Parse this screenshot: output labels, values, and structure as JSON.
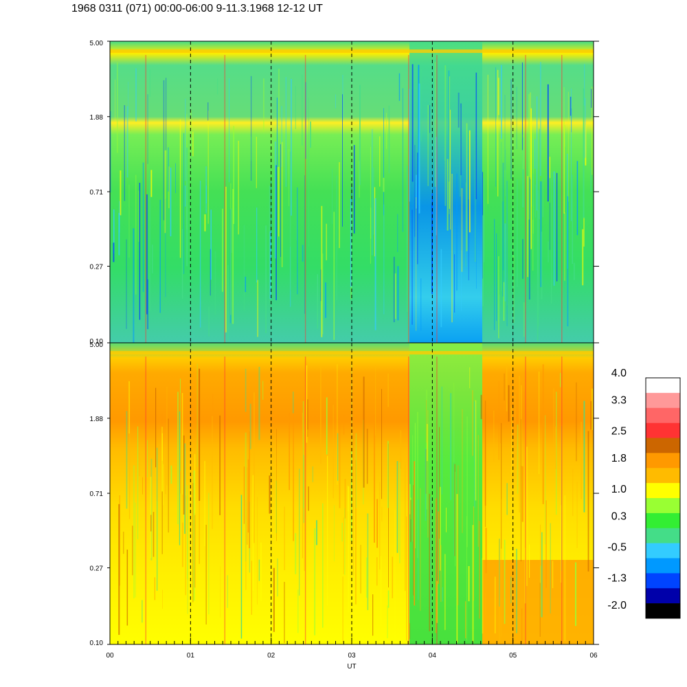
{
  "title": "1968 0311 (071) 00:00-06:00 9-11.3.1968  12-12 UT",
  "chart_data": [
    {
      "type": "heatmap",
      "panel": "top",
      "x_ticks": [
        "00",
        "01",
        "02",
        "03",
        "04",
        "05",
        "06"
      ],
      "xlim": [
        0,
        6
      ],
      "y_ticks": [
        "5.00",
        "1.88",
        "0.71",
        "0.27",
        "0.10"
      ],
      "ylim": [
        0.1,
        5.0
      ],
      "y_scale": "log",
      "grid": "dashed vertical lines at each hour"
    },
    {
      "type": "heatmap",
      "panel": "bottom",
      "x_ticks": [
        "00",
        "01",
        "02",
        "03",
        "04",
        "05",
        "06"
      ],
      "xlabel": "UT",
      "xlim": [
        0,
        6
      ],
      "y_ticks": [
        "5.00",
        "1.88",
        "0.71",
        "0.27",
        "0.10"
      ],
      "ylim": [
        0.1,
        5.0
      ],
      "y_scale": "log",
      "grid": "dashed vertical lines at each hour"
    }
  ],
  "colorbar": {
    "labels": [
      "4.0",
      "3.3",
      "2.5",
      "1.8",
      "1.0",
      "0.3",
      "-0.5",
      "-1.3",
      "-2.0"
    ],
    "range": [
      -2.0,
      4.0
    ],
    "colors_top_to_bottom": [
      "#ffffff",
      "#ff9999",
      "#ff6666",
      "#ff3333",
      "#cc6600",
      "#ff9900",
      "#ffbb00",
      "#ffff00",
      "#99ff33",
      "#33ee33",
      "#44dd88",
      "#33ccff",
      "#0099ff",
      "#0044ff",
      "#0000aa",
      "#000000"
    ]
  }
}
